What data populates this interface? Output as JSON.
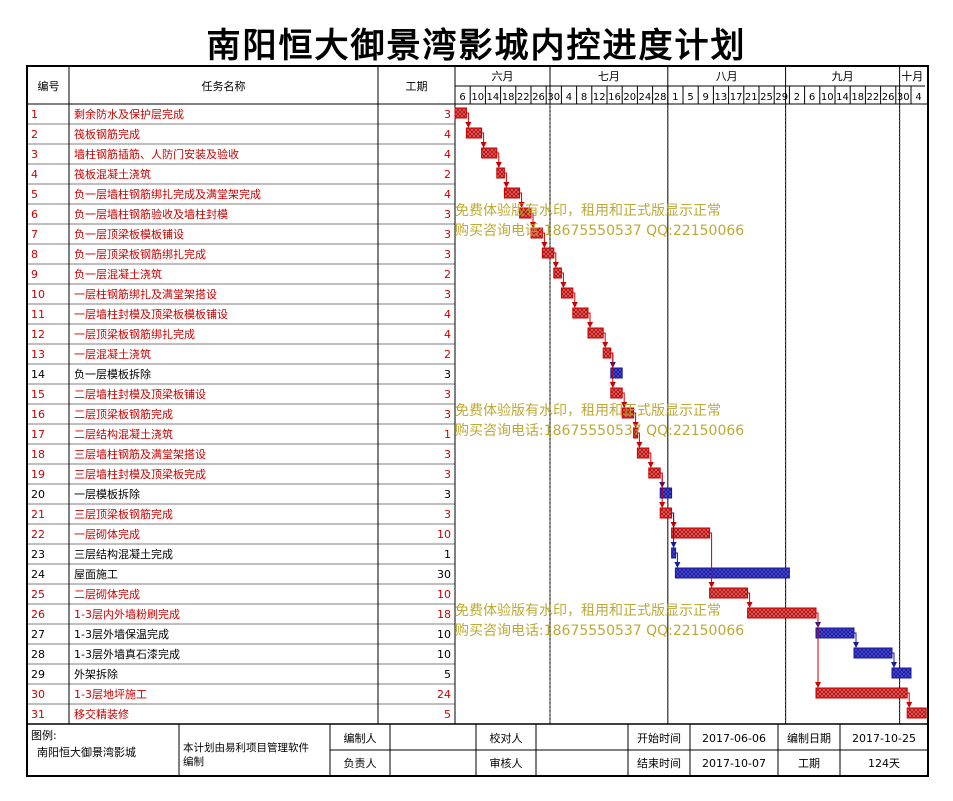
{
  "title": "南阳恒大御景湾影城内控进度计划",
  "headers": {
    "num": "编号",
    "name": "任务名称",
    "dur": "工期"
  },
  "months": [
    "六月",
    "七月",
    "八月",
    "九月",
    "十月"
  ],
  "day_ticks": [
    "6",
    "10",
    "14",
    "18",
    "22",
    "26",
    "30",
    "4",
    "8",
    "12",
    "16",
    "20",
    "24",
    "28",
    "1",
    "5",
    "9",
    "13",
    "17",
    "21",
    "25",
    "29",
    "2",
    "6",
    "10",
    "14",
    "18",
    "22",
    "26",
    "30",
    "4"
  ],
  "colors": {
    "critical": "#cc0000",
    "normal": "#1a1aa0",
    "critical_fill": "#e05050",
    "normal_fill": "#3a3ad0",
    "watermark": "#b8a020"
  },
  "watermark": {
    "line1": "免费体验版有水印，租用和正式版显示正常",
    "line2": "购买咨询电话:18675550537 QQ:22150066"
  },
  "footer": {
    "legend_label": "图例:",
    "project": "南阳恒大御景湾影城",
    "software": "本计划由易利项目管理软件编制",
    "prepared_by": "编制人",
    "checked_by": "校对人",
    "start_label": "开始时间",
    "start_value": "2017-06-06",
    "compile_date_label": "编制日期",
    "compile_date_value": "2017-10-25",
    "responsible": "负责人",
    "reviewer": "审核人",
    "end_label": "结束时间",
    "end_value": "2017-10-07",
    "duration_label": "工期",
    "duration_value": "124天"
  },
  "chart_data": {
    "type": "gantt",
    "title": "南阳恒大御景湾影城内控进度计划",
    "start_date": "2017-06-06",
    "end_date": "2017-10-07",
    "tasks": [
      {
        "id": "1",
        "name": "剩余防水及保护层完成",
        "duration": 3,
        "start": "2017-06-06",
        "critical": true
      },
      {
        "id": "2",
        "name": "筏板钢筋完成",
        "duration": 4,
        "start": "2017-06-09",
        "critical": true
      },
      {
        "id": "3",
        "name": "墙柱钢筋插筋、人防门安装及验收",
        "duration": 4,
        "start": "2017-06-13",
        "critical": true
      },
      {
        "id": "4",
        "name": "筏板混凝土浇筑",
        "duration": 2,
        "start": "2017-06-17",
        "critical": true
      },
      {
        "id": "5",
        "name": "负一层墙柱钢筋绑扎完成及满堂架完成",
        "duration": 4,
        "start": "2017-06-19",
        "critical": true
      },
      {
        "id": "6",
        "name": "负一层墙柱钢筋验收及墙柱封模",
        "duration": 3,
        "start": "2017-06-23",
        "critical": true
      },
      {
        "id": "7",
        "name": "负一层顶梁板模板铺设",
        "duration": 3,
        "start": "2017-06-26",
        "critical": true
      },
      {
        "id": "8",
        "name": "负一层顶梁板钢筋绑扎完成",
        "duration": 3,
        "start": "2017-06-29",
        "critical": true
      },
      {
        "id": "9",
        "name": "负一层混凝土浇筑",
        "duration": 2,
        "start": "2017-07-02",
        "critical": true
      },
      {
        "id": "10",
        "name": "一层柱钢筋绑扎及满堂架搭设",
        "duration": 3,
        "start": "2017-07-04",
        "critical": true
      },
      {
        "id": "11",
        "name": "一层墙柱封模及顶梁板模板铺设",
        "duration": 4,
        "start": "2017-07-07",
        "critical": true
      },
      {
        "id": "12",
        "name": "一层顶梁板钢筋绑扎完成",
        "duration": 4,
        "start": "2017-07-11",
        "critical": true
      },
      {
        "id": "13",
        "name": "一层混凝土浇筑",
        "duration": 2,
        "start": "2017-07-15",
        "critical": true
      },
      {
        "id": "14",
        "name": "负一层模板拆除",
        "duration": 3,
        "start": "2017-07-17",
        "critical": false
      },
      {
        "id": "15",
        "name": "二层墙柱封模及顶梁板铺设",
        "duration": 3,
        "start": "2017-07-17",
        "critical": true
      },
      {
        "id": "16",
        "name": "二层顶梁板钢筋完成",
        "duration": 3,
        "start": "2017-07-20",
        "critical": true
      },
      {
        "id": "17",
        "name": "二层结构混凝土浇筑",
        "duration": 1,
        "start": "2017-07-23",
        "critical": true
      },
      {
        "id": "18",
        "name": "三层墙柱钢筋及满堂架搭设",
        "duration": 3,
        "start": "2017-07-24",
        "critical": true
      },
      {
        "id": "19",
        "name": "三层墙柱封模及顶梁板完成",
        "duration": 3,
        "start": "2017-07-27",
        "critical": true
      },
      {
        "id": "20",
        "name": "一层模板拆除",
        "duration": 3,
        "start": "2017-07-30",
        "critical": false
      },
      {
        "id": "21",
        "name": "三层顶梁板钢筋完成",
        "duration": 3,
        "start": "2017-07-30",
        "critical": true
      },
      {
        "id": "22",
        "name": "一层砌体完成",
        "duration": 10,
        "start": "2017-08-02",
        "critical": true
      },
      {
        "id": "23",
        "name": "三层结构混凝土完成",
        "duration": 1,
        "start": "2017-08-02",
        "critical": false
      },
      {
        "id": "24",
        "name": "屋面施工",
        "duration": 30,
        "start": "2017-08-03",
        "critical": false
      },
      {
        "id": "25",
        "name": "二层砌体完成",
        "duration": 10,
        "start": "2017-08-12",
        "critical": true
      },
      {
        "id": "26",
        "name": "1-3层内外墙粉刷完成",
        "duration": 18,
        "start": "2017-08-22",
        "critical": true
      },
      {
        "id": "27",
        "name": "1-3层外墙保温完成",
        "duration": 10,
        "start": "2017-09-09",
        "critical": false
      },
      {
        "id": "28",
        "name": "1-3层外墙真石漆完成",
        "duration": 10,
        "start": "2017-09-19",
        "critical": false
      },
      {
        "id": "29",
        "name": "外架拆除",
        "duration": 5,
        "start": "2017-09-29",
        "critical": false
      },
      {
        "id": "30",
        "name": "1-3层地坪施工",
        "duration": 24,
        "start": "2017-09-09",
        "critical": true
      },
      {
        "id": "31",
        "name": "移交精装修",
        "duration": 5,
        "start": "2017-10-03",
        "critical": true
      }
    ]
  }
}
